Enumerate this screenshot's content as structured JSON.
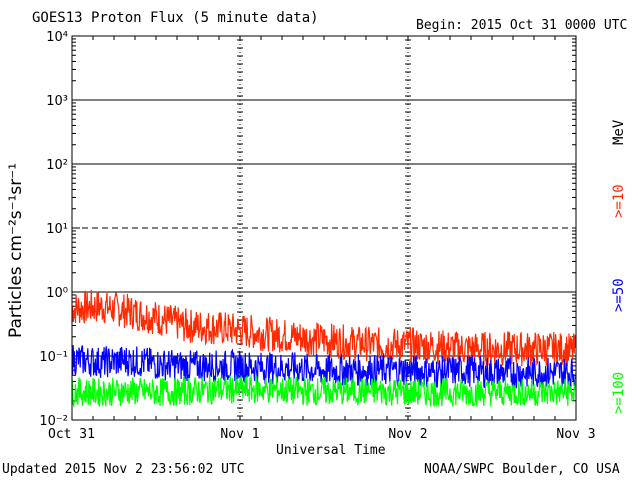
{
  "header": {
    "title": "GOES13 Proton Flux (5 minute data)",
    "begin": "Begin: 2015 Oct 31 0000 UTC"
  },
  "footer": {
    "updated": "Updated 2015 Nov  2 23:56:02 UTC",
    "credit": "NOAA/SWPC Boulder, CO USA"
  },
  "chart_data": {
    "type": "line",
    "title": "GOES13 Proton Flux (5 minute data)",
    "xlabel": "Universal Time",
    "ylabel": "Particles cm⁻²s⁻¹sr⁻¹",
    "yscale": "log",
    "ylim": [
      0.01,
      10000
    ],
    "xlim": [
      0,
      72
    ],
    "x_unit_hours_from": "2015 Oct 31 0000 UTC",
    "x_ticks": [
      {
        "at": 0,
        "label": "Oct 31"
      },
      {
        "at": 24,
        "label": "Nov 1"
      },
      {
        "at": 48,
        "label": "Nov 2"
      },
      {
        "at": 72,
        "label": "Nov 3"
      }
    ],
    "y_ticks": [
      {
        "value": 0.01,
        "label": "10⁻²"
      },
      {
        "value": 0.1,
        "label": "10⁻¹"
      },
      {
        "value": 1,
        "label": "10⁰"
      },
      {
        "value": 10,
        "label": "10¹"
      },
      {
        "value": 100,
        "label": "10²"
      },
      {
        "value": 1000,
        "label": "10³"
      },
      {
        "value": 10000,
        "label": "10⁴"
      }
    ],
    "legend_unit": "MeV",
    "series": [
      {
        "name": ">=10",
        "color": "#ff2a00",
        "x": [
          0,
          4,
          8,
          12,
          16,
          20,
          24,
          28,
          32,
          36,
          40,
          44,
          48,
          52,
          56,
          60,
          64,
          68,
          72
        ],
        "y": [
          0.55,
          0.6,
          0.5,
          0.4,
          0.3,
          0.28,
          0.25,
          0.22,
          0.2,
          0.18,
          0.16,
          0.15,
          0.15,
          0.14,
          0.13,
          0.13,
          0.13,
          0.13,
          0.12
        ]
      },
      {
        "name": ">=50",
        "color": "#0000ff",
        "x": [
          0,
          4,
          8,
          12,
          16,
          20,
          24,
          28,
          32,
          36,
          40,
          44,
          48,
          52,
          56,
          60,
          64,
          68,
          72
        ],
        "y": [
          0.09,
          0.08,
          0.085,
          0.075,
          0.07,
          0.07,
          0.07,
          0.065,
          0.065,
          0.06,
          0.06,
          0.06,
          0.06,
          0.055,
          0.06,
          0.055,
          0.055,
          0.055,
          0.055
        ]
      },
      {
        "name": ">=100",
        "color": "#00ff00",
        "x": [
          0,
          4,
          8,
          12,
          16,
          20,
          24,
          28,
          32,
          36,
          40,
          44,
          48,
          52,
          56,
          60,
          64,
          68,
          72
        ],
        "y": [
          0.028,
          0.027,
          0.028,
          0.027,
          0.028,
          0.03,
          0.03,
          0.03,
          0.028,
          0.028,
          0.028,
          0.028,
          0.027,
          0.027,
          0.027,
          0.027,
          0.027,
          0.027,
          0.027
        ]
      }
    ],
    "grid": true
  }
}
